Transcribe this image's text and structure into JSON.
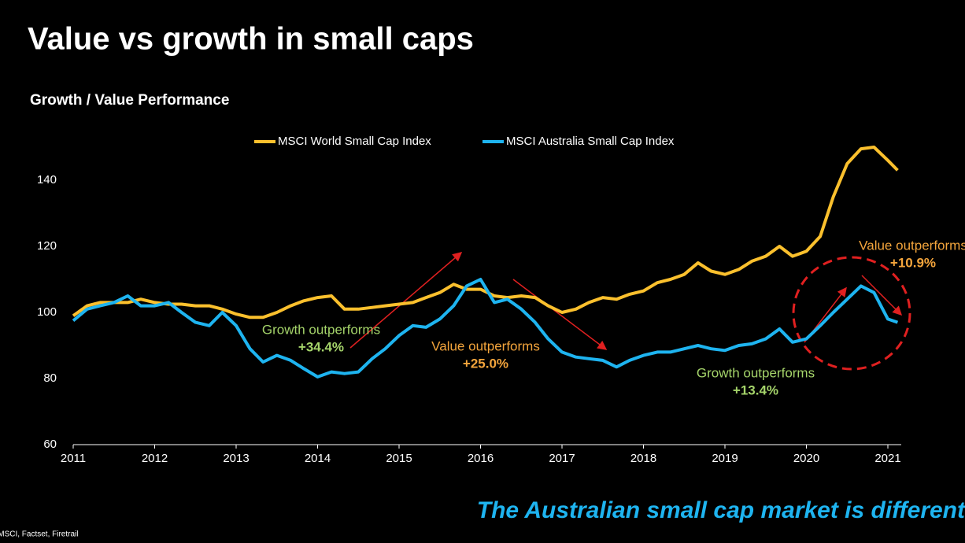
{
  "chart_data": {
    "type": "line",
    "title": "Value vs growth in small caps",
    "subtitle": "Growth / Value Performance",
    "x": [
      2011,
      2011.17,
      2011.33,
      2011.5,
      2011.67,
      2011.83,
      2012,
      2012.17,
      2012.33,
      2012.5,
      2012.67,
      2012.83,
      2013,
      2013.17,
      2013.33,
      2013.5,
      2013.67,
      2013.83,
      2014,
      2014.17,
      2014.33,
      2014.5,
      2014.67,
      2014.83,
      2015,
      2015.17,
      2015.33,
      2015.5,
      2015.67,
      2015.83,
      2016,
      2016.17,
      2016.33,
      2016.5,
      2016.67,
      2016.83,
      2017,
      2017.17,
      2017.33,
      2017.5,
      2017.67,
      2017.83,
      2018,
      2018.17,
      2018.33,
      2018.5,
      2018.67,
      2018.83,
      2019,
      2019.17,
      2019.33,
      2019.5,
      2019.67,
      2019.83,
      2020,
      2020.17,
      2020.33,
      2020.5,
      2020.67,
      2020.83,
      2021,
      2021.12
    ],
    "series": [
      {
        "name": "MSCI World Small Cap Index",
        "color": "#fbc02d",
        "values": [
          99,
          102,
          103,
          103,
          103,
          104,
          103,
          102.5,
          102.5,
          102,
          102,
          101,
          99.5,
          98.5,
          98.5,
          100,
          102,
          103.5,
          104.5,
          105,
          101,
          101,
          101.5,
          102,
          102.5,
          103,
          104.5,
          106,
          108.5,
          107,
          107,
          105,
          104.5,
          105,
          104.5,
          102,
          100,
          101,
          103,
          104.5,
          104,
          105.5,
          106.5,
          109,
          110,
          111.5,
          115,
          112.5,
          111.5,
          113,
          115.5,
          117,
          120,
          117,
          118.5,
          123,
          135,
          145,
          149.5,
          150,
          146,
          143
        ]
      },
      {
        "name": "MSCI Australia Small Cap Index",
        "color": "#1eb4f0",
        "values": [
          97.5,
          101,
          102,
          103,
          105,
          102,
          102,
          103,
          100,
          97,
          96,
          100,
          96,
          89,
          85,
          87,
          85.5,
          83,
          80.5,
          82,
          81.5,
          82,
          86,
          89,
          93,
          96,
          95.5,
          98,
          102,
          108,
          110,
          103,
          104,
          101,
          97,
          92,
          88,
          86.5,
          86,
          85.5,
          83.5,
          85.5,
          87,
          88,
          88,
          89,
          90,
          89,
          88.5,
          90,
          90.5,
          92,
          95,
          91,
          92,
          96,
          100,
          104,
          108,
          106,
          98,
          97
        ]
      }
    ],
    "xlim": [
      2011,
      2021.15
    ],
    "xticks": [
      2011,
      2012,
      2013,
      2014,
      2015,
      2016,
      2017,
      2018,
      2019,
      2020,
      2021
    ],
    "ylim": [
      60,
      150
    ],
    "yticks": [
      60,
      80,
      100,
      120,
      140
    ],
    "grid": false,
    "legend": "top",
    "annotations": [
      {
        "text": "Growth outperforms",
        "value": "+34.4%",
        "color": "#a5d46a"
      },
      {
        "text": "Value outperforms",
        "value": "+25.0%",
        "color": "#f4a53c"
      },
      {
        "text": "Growth outperforms",
        "value": "+13.4%",
        "color": "#a5d46a"
      },
      {
        "text": "Value outperforms",
        "value": "+10.9%",
        "color": "#f4a53c"
      }
    ],
    "tagline": "The Australian small cap market is different",
    "source": "Source: MSCI, Factset, Firetrail"
  }
}
